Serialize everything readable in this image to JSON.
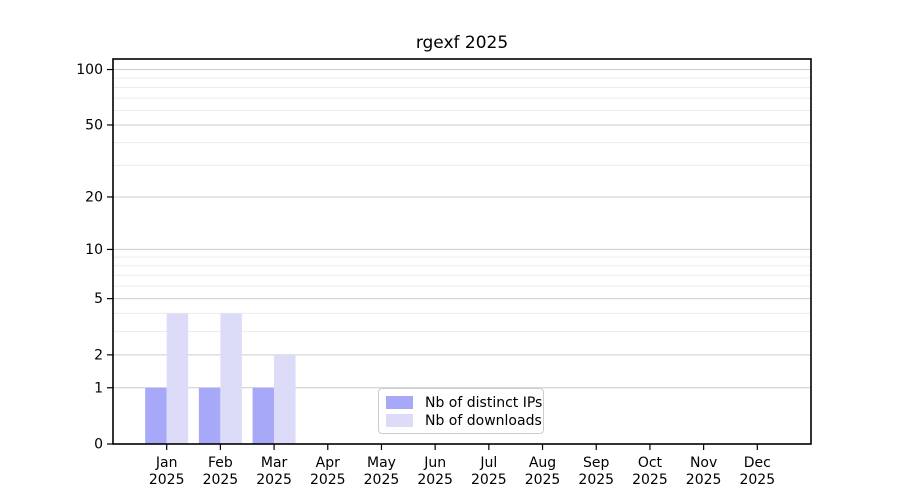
{
  "chart_data": {
    "type": "bar",
    "title": "rgexf 2025",
    "categories": [
      "Jan",
      "Feb",
      "Mar",
      "Apr",
      "May",
      "Jun",
      "Jul",
      "Aug",
      "Sep",
      "Oct",
      "Nov",
      "Dec"
    ],
    "category_year": "2025",
    "series": [
      {
        "name": "Nb of distinct IPs",
        "color": "#a8a8f8",
        "values": [
          1,
          1,
          1,
          0,
          0,
          0,
          0,
          0,
          0,
          0,
          0,
          0
        ]
      },
      {
        "name": "Nb of downloads",
        "color": "#dcdcf8",
        "values": [
          4,
          4,
          2,
          0,
          0,
          0,
          0,
          0,
          0,
          0,
          0,
          0
        ]
      }
    ],
    "yscale": "log1p",
    "ylim": [
      0,
      114
    ],
    "y_ticks": [
      0,
      1,
      2,
      5,
      10,
      20,
      50,
      100
    ],
    "y_minor_gridlines": [
      3,
      4,
      6,
      7,
      8,
      9,
      30,
      40,
      60,
      70,
      80,
      90
    ],
    "grid": true,
    "legend_position": "bottom-center",
    "colors": {
      "major_grid": "#cccccc",
      "minor_grid": "#ececec",
      "spine": "#000000",
      "tick_label": "#000000"
    }
  }
}
